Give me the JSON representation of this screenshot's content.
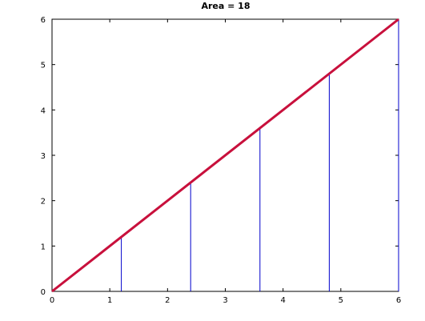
{
  "chart_data": {
    "type": "line",
    "title": "Area = 18",
    "xlabel": "",
    "ylabel": "",
    "xlim": [
      0,
      6
    ],
    "ylim": [
      0,
      6
    ],
    "x_ticks": [
      0,
      1,
      2,
      3,
      4,
      5,
      6
    ],
    "y_ticks": [
      0,
      1,
      2,
      3,
      4,
      5,
      6
    ],
    "grid": false,
    "series": [
      {
        "x": [
          0,
          6
        ],
        "y": [
          0,
          6
        ],
        "color": "#c8103c"
      }
    ],
    "vertical_lines": {
      "color": "#0000cc",
      "x": [
        1.2,
        2.4,
        3.6,
        4.8,
        6
      ],
      "y_bottom": 0,
      "y_top": [
        1.2,
        2.4,
        3.6,
        4.8,
        6
      ]
    }
  }
}
